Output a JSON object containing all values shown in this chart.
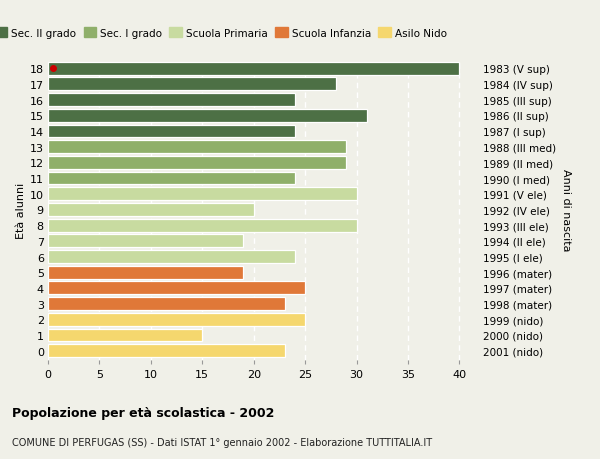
{
  "ages": [
    0,
    1,
    2,
    3,
    4,
    5,
    6,
    7,
    8,
    9,
    10,
    11,
    12,
    13,
    14,
    15,
    16,
    17,
    18
  ],
  "values": [
    23,
    15,
    25,
    23,
    25,
    19,
    24,
    19,
    30,
    20,
    30,
    24,
    29,
    29,
    24,
    31,
    24,
    28,
    40
  ],
  "right_labels": [
    "2001 (nido)",
    "2000 (nido)",
    "1999 (nido)",
    "1998 (mater)",
    "1997 (mater)",
    "1996 (mater)",
    "1995 (I ele)",
    "1994 (II ele)",
    "1993 (III ele)",
    "1992 (IV ele)",
    "1991 (V ele)",
    "1990 (I med)",
    "1989 (II med)",
    "1988 (III med)",
    "1987 (I sup)",
    "1986 (II sup)",
    "1985 (III sup)",
    "1984 (IV sup)",
    "1983 (V sup)"
  ],
  "colors": [
    "#f5d76e",
    "#f5d76e",
    "#f5d76e",
    "#e07838",
    "#e07838",
    "#e07838",
    "#c8dba0",
    "#c8dba0",
    "#c8dba0",
    "#c8dba0",
    "#c8dba0",
    "#8faf6a",
    "#8faf6a",
    "#8faf6a",
    "#4d7045",
    "#4d7045",
    "#4d7045",
    "#4d7045",
    "#4d7045"
  ],
  "legend_labels": [
    "Sec. II grado",
    "Sec. I grado",
    "Scuola Primaria",
    "Scuola Infanzia",
    "Asilo Nido"
  ],
  "legend_colors": [
    "#4d7045",
    "#8faf6a",
    "#c8dba0",
    "#e07838",
    "#f5d76e"
  ],
  "ylabel_left": "Età alunni",
  "ylabel_right": "Anni di nascita",
  "title": "Popolazione per età scolastica - 2002",
  "subtitle": "COMUNE DI PERFUGAS (SS) - Dati ISTAT 1° gennaio 2002 - Elaborazione TUTTITALIA.IT",
  "xlim": [
    0,
    42
  ],
  "background_color": "#f0f0e8",
  "special_dot_age": 18,
  "special_dot_color": "#cc0000",
  "xticks": [
    0,
    5,
    10,
    15,
    20,
    25,
    30,
    35,
    40
  ]
}
